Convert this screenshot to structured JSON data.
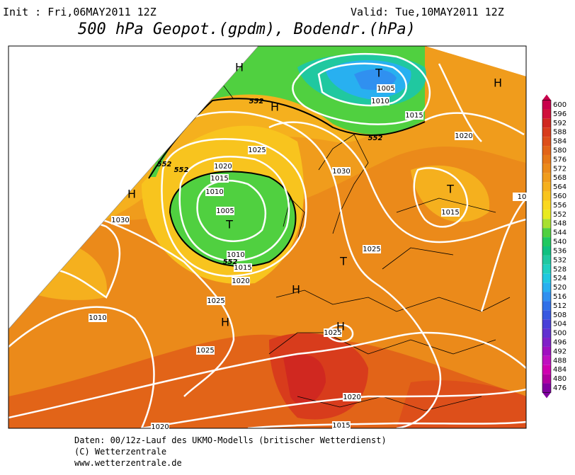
{
  "header": {
    "init": "Init : Fri,06MAY2011 12Z",
    "valid": "Valid: Tue,10MAY2011 12Z",
    "title": "500 hPa Geopot.(gpdm), Bodendr.(hPa)"
  },
  "map": {
    "pressure_labels": [
      1005,
      1010,
      1015,
      1020,
      1030,
      1025,
      1020,
      1015,
      1010,
      1005,
      1030,
      1010,
      1015,
      1020,
      1025,
      1025,
      1015,
      1010,
      1025,
      1025,
      1020,
      1015,
      1020,
      "10"
    ],
    "geopot_labels": [
      552,
      552,
      552,
      552,
      552
    ],
    "centers": [
      "H",
      "H",
      "T",
      "H",
      "H",
      "T",
      "T",
      "T",
      "H",
      "H",
      "H"
    ]
  },
  "colorbar": {
    "labels": [
      600,
      596,
      592,
      588,
      584,
      580,
      576,
      572,
      568,
      564,
      560,
      556,
      552,
      548,
      544,
      540,
      536,
      532,
      528,
      524,
      520,
      516,
      512,
      508,
      504,
      500,
      496,
      492,
      488,
      484,
      480,
      476
    ],
    "colors": [
      "#c8004b",
      "#d0103a",
      "#d02820",
      "#d83c1c",
      "#dd4f1a",
      "#e26418",
      "#e67818",
      "#eb8a1a",
      "#f09c1c",
      "#f5b01e",
      "#f8c41e",
      "#fad820",
      "#e8ea20",
      "#a8e030",
      "#50d040",
      "#20c860",
      "#10c080",
      "#20c8a0",
      "#20d0c0",
      "#20c8e0",
      "#28b0f0",
      "#3090f0",
      "#3070e8",
      "#3858e0",
      "#4840d8",
      "#6030d0",
      "#8020c8",
      "#a010c0",
      "#c010c0",
      "#d000b0",
      "#b000a0",
      "#8000a0"
    ]
  },
  "footer": {
    "line1": "Daten: 00/12z-Lauf des UKMO-Modells (britischer Wetterdienst)",
    "line2": "(C) Wetterzentrale",
    "line3": "www.wetterzentrale.de"
  }
}
